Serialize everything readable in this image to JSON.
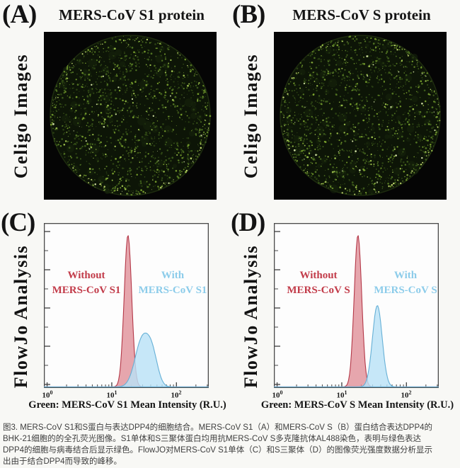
{
  "figure": {
    "panels": {
      "A": {
        "label": "(A)",
        "title": "MERS-CoV S1 protein",
        "side_label": "Celigo Images"
      },
      "B": {
        "label": "(B)",
        "title": "MERS-CoV S protein",
        "side_label": "Celigo Images"
      },
      "C": {
        "label": "(C)",
        "side_label": "FlowJo Analysis",
        "annotation_red": [
          "Without",
          "MERS-CoV S1"
        ],
        "annotation_blue": [
          "With",
          "MERS-CoV S1"
        ]
      },
      "D": {
        "label": "(D)",
        "side_label": "FlowJo Analysis",
        "annotation_red": [
          "Without",
          "MERS-CoV S"
        ],
        "annotation_blue": [
          "With",
          "MERS-CoV S"
        ]
      }
    },
    "caption_lines": [
      "图3. MERS-CoV S1和S蛋白与表达DPP4的细胞结合。MERS-CoV S1（A）和MERS-CoV S（B）蛋白结合表达DPP4的",
      "BHK-21细胞的的全孔荧光图像。S1单体和S三聚体蛋白均用抗MERS-CoV S多克隆抗体AL488染色，表明与绿色表达",
      "DPP4的细胞与病毒结合后显示绿色。FlowJO对MERS-CoV S1单体（C）和S三聚体（D）的图像荧光强度数据分析显示",
      "出由于结合DPP4而导致的峰移。"
    ]
  },
  "colors": {
    "page_bg": "#f8f8f5",
    "red_text": "#c23b49",
    "blue_text": "#8cccea",
    "red_curve_stroke": "#b43848",
    "red_curve_fill": "#e0939b",
    "blue_curve_stroke": "#66b0d6",
    "blue_curve_fill": "#b9e2f7",
    "plot_border": "#4a4a4a",
    "well_bg": "#050505",
    "speckle_green": "#79a22e"
  },
  "chart_data": [
    {
      "panel": "C",
      "type": "area",
      "title": "",
      "xlabel": "Green: MERS-CoV S1 Mean Intensity (R.U.)",
      "ylabel": "",
      "x_scale": "log10",
      "xlim_log10": [
        -0.05,
        2.5
      ],
      "ylim": [
        0,
        1
      ],
      "grid": false,
      "legend": "in-plot colored annotations",
      "x_ticks": [
        {
          "base": "10",
          "exp": "0"
        },
        {
          "base": "10",
          "exp": "1"
        },
        {
          "base": "10",
          "exp": "2"
        }
      ],
      "series": [
        {
          "name": "Without MERS-CoV S1",
          "color": "#b43848",
          "fill": "#e0939b",
          "peaks": [
            {
              "center_log10": 1.25,
              "sigma_log10": 0.058,
              "height": 0.97
            }
          ]
        },
        {
          "name": "With MERS-CoV S1",
          "color": "#66b0d6",
          "fill": "#b9e2f7",
          "peaks": [
            {
              "center_log10": 1.47,
              "sigma_log10": 0.11,
              "height": 0.3
            },
            {
              "center_log10": 1.63,
              "sigma_log10": 0.085,
              "height": 0.17
            }
          ]
        }
      ]
    },
    {
      "panel": "D",
      "type": "area",
      "title": "",
      "xlabel": "Green: MERS-CoV S Mean Intensity (R.U.)",
      "ylabel": "",
      "x_scale": "log10",
      "xlim_log10": [
        -0.05,
        2.5
      ],
      "ylim": [
        0,
        1
      ],
      "grid": false,
      "legend": "in-plot colored annotations",
      "x_ticks": [
        {
          "base": "10",
          "exp": "0"
        },
        {
          "base": "10",
          "exp": "1"
        },
        {
          "base": "10",
          "exp": "2"
        }
      ],
      "series": [
        {
          "name": "Without MERS-CoV S",
          "color": "#b43848",
          "fill": "#e0939b",
          "peaks": [
            {
              "center_log10": 1.25,
              "sigma_log10": 0.058,
              "height": 0.97
            }
          ]
        },
        {
          "name": "With MERS-CoV S",
          "color": "#66b0d6",
          "fill": "#b9e2f7",
          "peaks": [
            {
              "center_log10": 1.55,
              "sigma_log10": 0.075,
              "height": 0.52
            }
          ]
        }
      ]
    }
  ]
}
